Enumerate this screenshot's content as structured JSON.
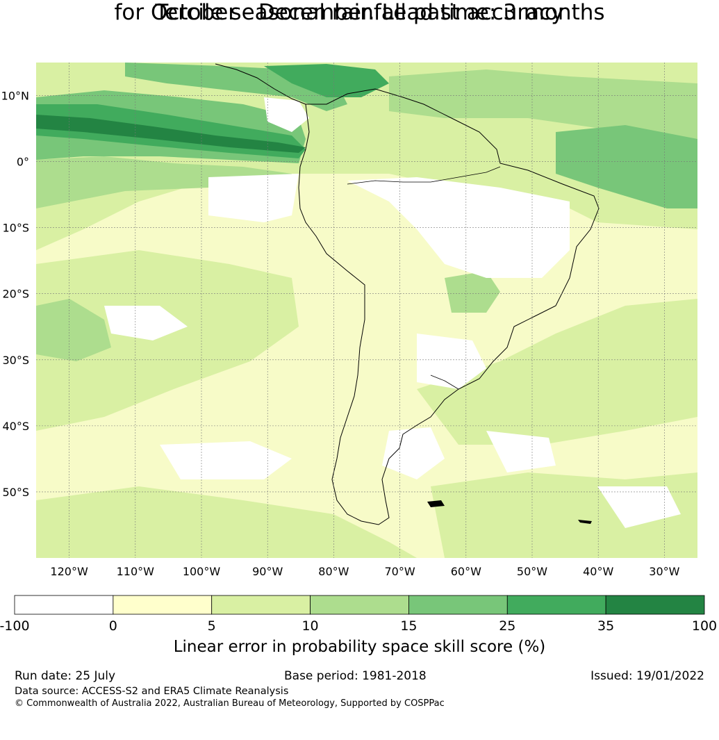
{
  "title": {
    "line1": "Tercile seasonal rainfall past accuracy",
    "line2": "for October - December. Lead time: 3 months"
  },
  "map": {
    "extent": {
      "lon_min": -125,
      "lon_max": -25,
      "lat_min": -60,
      "lat_max": 15
    },
    "latitude_lines": [
      10,
      0,
      -10,
      -20,
      -30,
      -40,
      -50
    ],
    "longitude_lines": [
      -120,
      -110,
      -100,
      -90,
      -80,
      -70,
      -60,
      -50,
      -40,
      -30
    ],
    "latitude_labels": [
      "10°N",
      "0°",
      "10°S",
      "20°S",
      "30°S",
      "40°S",
      "50°S"
    ],
    "longitude_labels": [
      "120°W",
      "110°W",
      "100°W",
      "90°W",
      "80°W",
      "70°W",
      "60°W",
      "50°W",
      "40°W",
      "30°W"
    ],
    "gridlines": true,
    "field": "Linear error in probability space skill score (%)"
  },
  "colorbar": {
    "bounds": [
      "-100",
      "0",
      "5",
      "10",
      "15",
      "25",
      "35",
      "100"
    ],
    "colors": [
      "#ffffff",
      "#ffffcc",
      "#d9f0a3",
      "#addd8e",
      "#78c679",
      "#41ab5d",
      "#238443"
    ],
    "label": "Linear error in probability space skill score (%)"
  },
  "footer": {
    "run_date": "Run date: 25 July",
    "base_period": "Base period: 1981-2018",
    "issued": "Issued: 19/01/2022",
    "data_source": "Data source: ACCESS-S2 and ERA5 Climate Reanalysis",
    "copyright": "© Commonwealth of Australia 2022, Australian Bureau of Meteorology, Supported by COSPPac"
  }
}
